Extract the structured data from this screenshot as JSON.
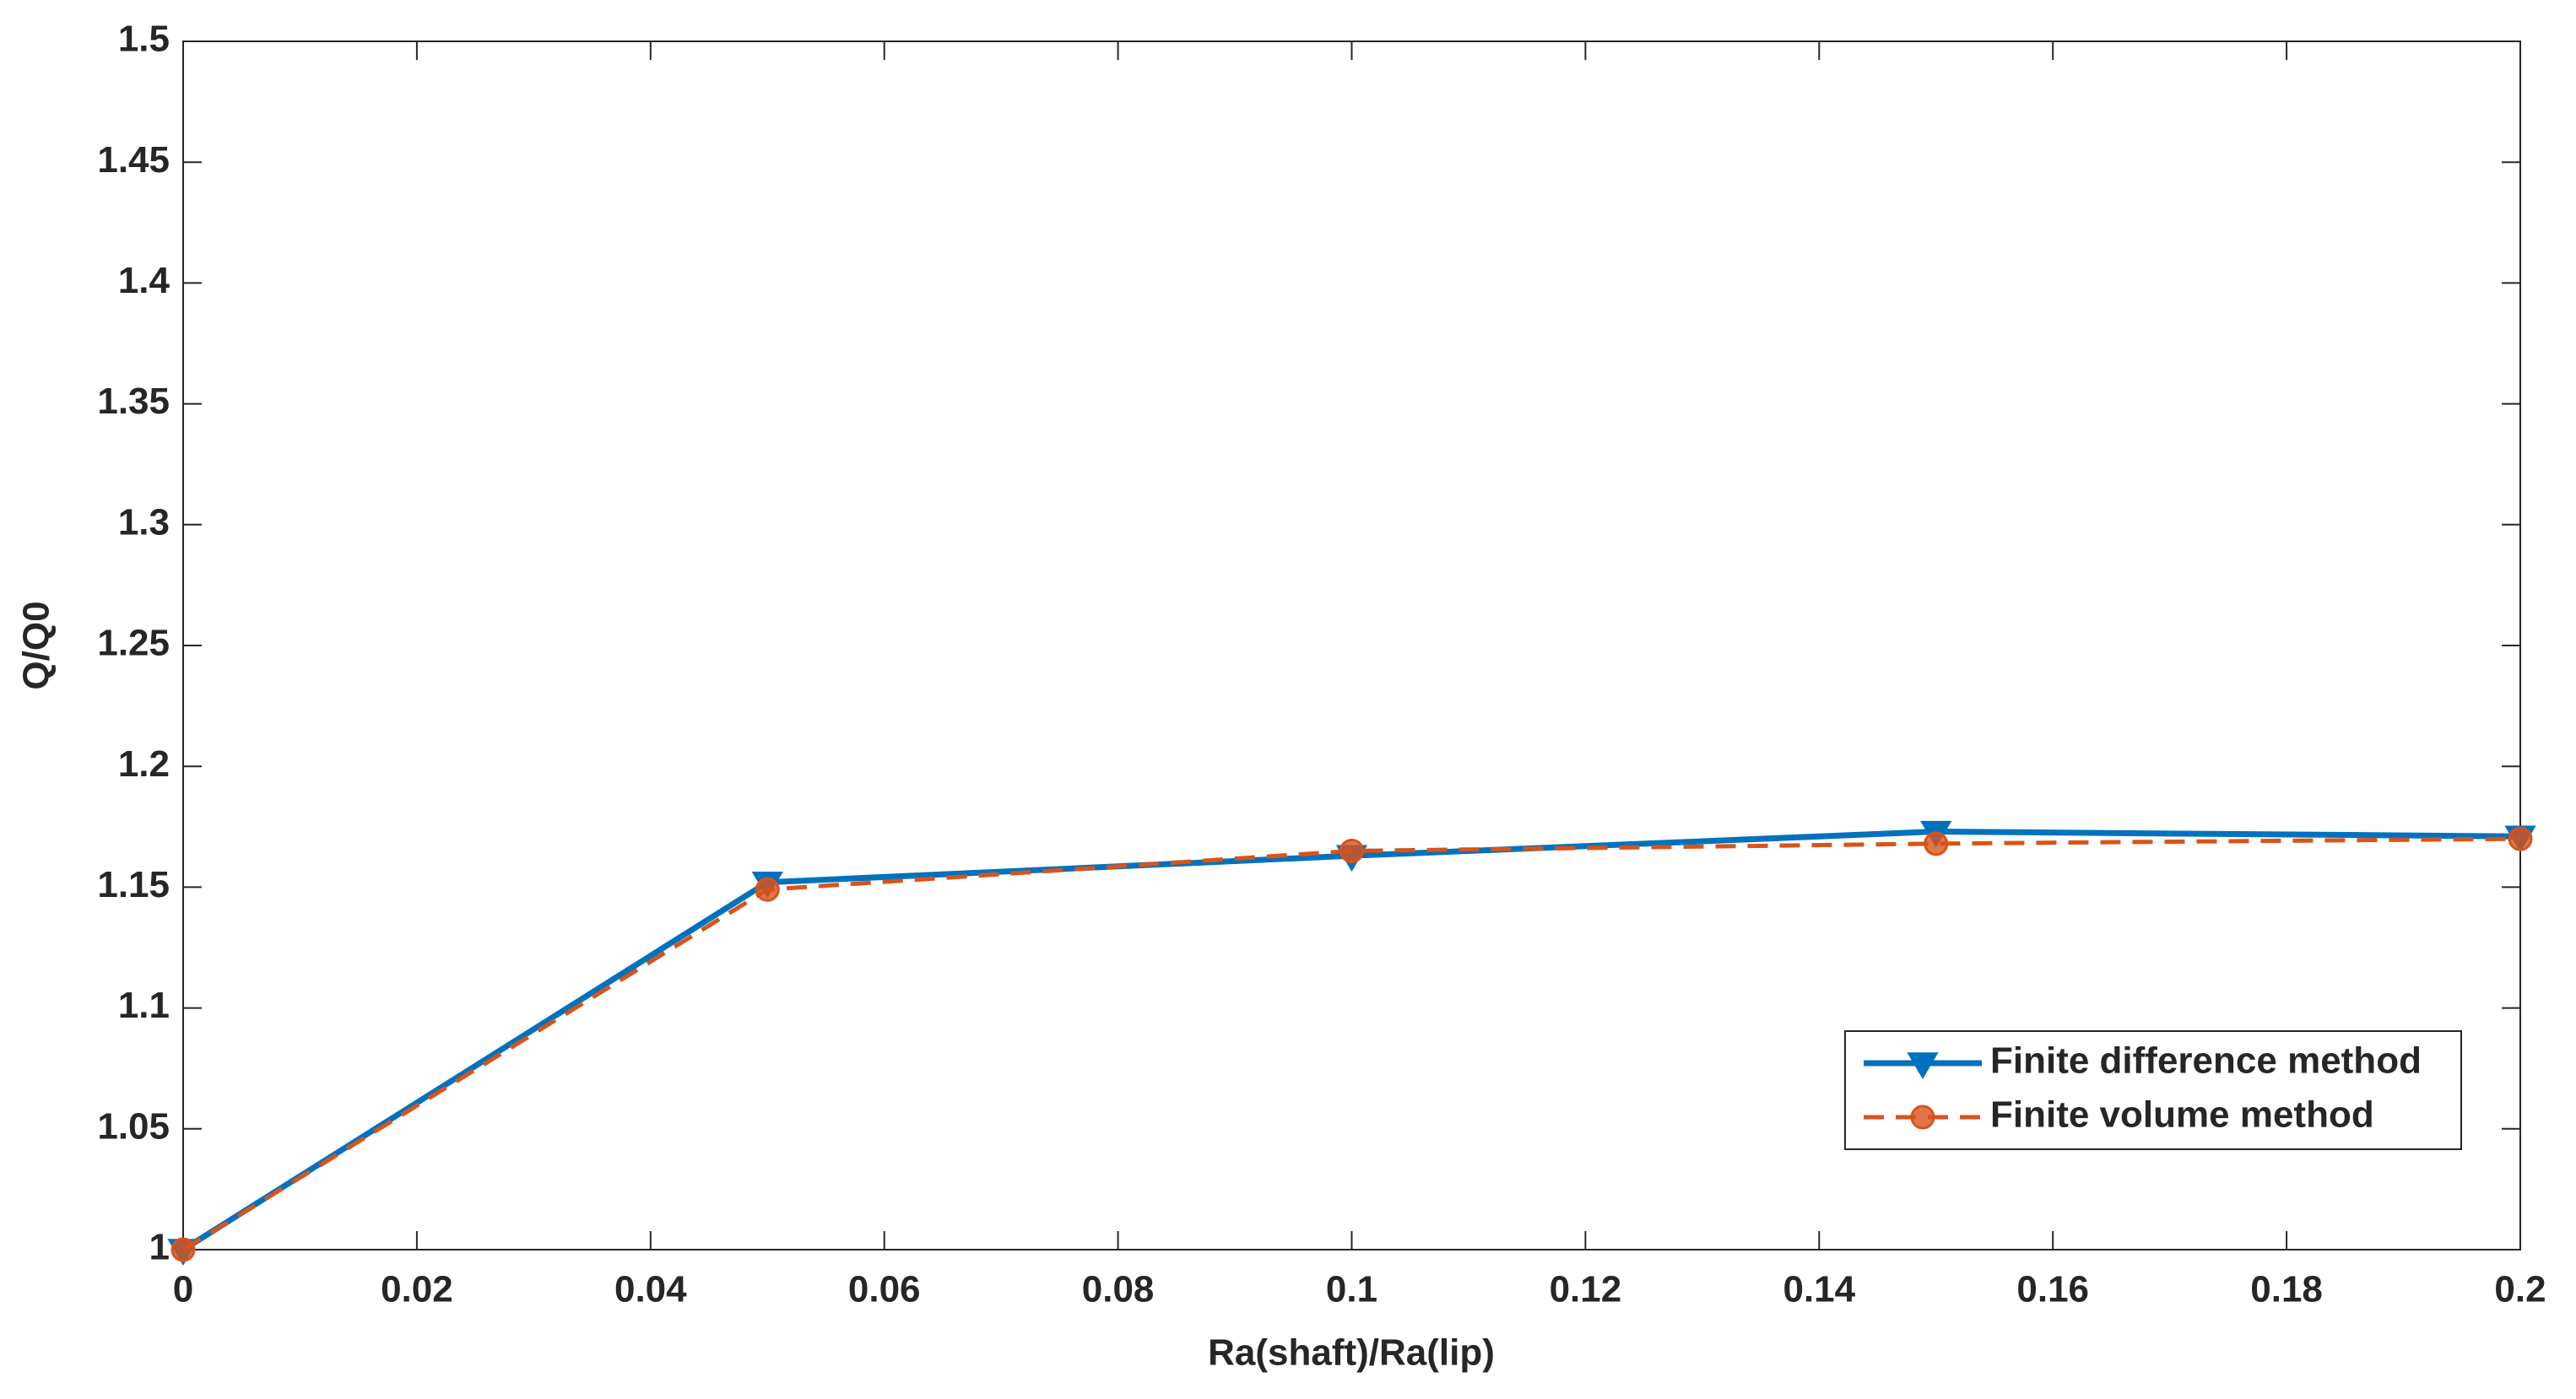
{
  "chart_data": {
    "type": "line",
    "x_label": "Ra(shaft)/Ra(lip)",
    "y_label": "Q/Q0",
    "x": [
      0,
      0.05,
      0.1,
      0.15,
      0.2
    ],
    "series": [
      {
        "name": "Finite difference method",
        "color": "#0072bd",
        "linestyle": "solid",
        "marker": "triangle",
        "values": [
          1.0,
          1.152,
          1.163,
          1.173,
          1.171
        ]
      },
      {
        "name": "Finite volume method",
        "color": "#d95319",
        "linestyle": "dashed",
        "marker": "circle",
        "values": [
          1.0,
          1.149,
          1.165,
          1.168,
          1.17
        ]
      }
    ],
    "xlim": [
      0,
      0.2
    ],
    "xticks": [
      0,
      0.02,
      0.04,
      0.06,
      0.08,
      0.1,
      0.12,
      0.14,
      0.16,
      0.18,
      0.2
    ],
    "ylim": [
      1,
      1.5
    ],
    "yticks": [
      1,
      1.05,
      1.1,
      1.15,
      1.2,
      1.25,
      1.3,
      1.35,
      1.4,
      1.45,
      1.5
    ],
    "legend": "lower right"
  }
}
